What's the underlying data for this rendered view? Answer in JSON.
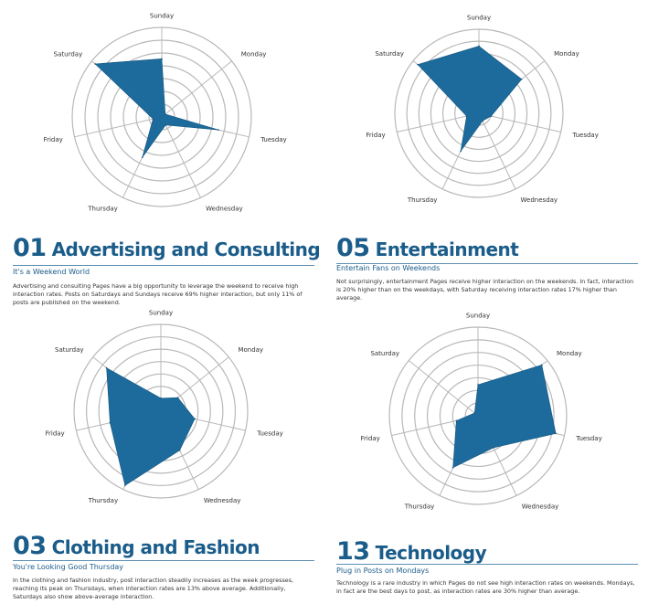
{
  "colors": {
    "accent": "#1a5c8a",
    "area": "#1d6b9c",
    "grid": "#b8b8b8"
  },
  "days": [
    "Monday",
    "Tuesday",
    "Wednesday",
    "Thursday",
    "Friday",
    "Saturday",
    "Sunday"
  ],
  "panels": [
    {
      "number": "01",
      "title": "Advertising and Consulting",
      "subtitle": "It's a Weekend World",
      "body": "Advertising and consulting Pages have a big opportunity to leverage the weekend to receive high interaction rates. Posts on Saturdays and Sundays receive 69% higher interaction, but only 11% of posts are published on the weekend."
    },
    {
      "number": "05",
      "title": "Entertainment",
      "subtitle": "Entertain Fans on Weekends",
      "body": "Not surprisingly, entertainment Pages receive higher interaction on the weekends. In fact, interaction is 20% higher than on the weekdays, with Saturday receiving interaction rates 17% higher than average."
    },
    {
      "number": "03",
      "title": "Clothing and Fashion",
      "subtitle": "You're Looking Good Thursday",
      "body": "In the clothing and fashion industry, post interaction steadily increases as the week progresses, reaching its peak on Thursdays, when interaction rates are 13% above average. Additionally, Saturdays also show above-average interaction."
    },
    {
      "number": "13",
      "title": "Technology",
      "subtitle": "Plug in Posts on Mondays",
      "body": "Technology is a rare industry in which Pages do not see high interaction rates on weekends. Mondays, in fact are the best days to post, as interaction rates are 30% higher than average."
    }
  ],
  "chart_data": [
    {
      "type": "radar",
      "categories": [
        "Monday",
        "Tuesday",
        "Wednesday",
        "Thursday",
        "Friday",
        "Saturday",
        "Sunday"
      ],
      "rings": 7,
      "values": [
        0.5,
        6.5,
        1.0,
        5.0,
        1.0,
        9.5,
        6.5
      ]
    },
    {
      "type": "radar",
      "categories": [
        "Monday",
        "Tuesday",
        "Wednesday",
        "Thursday",
        "Friday",
        "Saturday",
        "Sunday"
      ],
      "rings": 7,
      "values": [
        6.5,
        1.5,
        1.0,
        5.0,
        1.5,
        9.3,
        8.0
      ]
    },
    {
      "type": "radar",
      "categories": [
        "Monday",
        "Tuesday",
        "Wednesday",
        "Thursday",
        "Friday",
        "Saturday",
        "Sunday"
      ],
      "rings": 7,
      "values": [
        2.5,
        4.0,
        5.0,
        9.5,
        6.0,
        8.0,
        1.5
      ]
    },
    {
      "type": "radar",
      "categories": [
        "Monday",
        "Tuesday",
        "Wednesday",
        "Thursday",
        "Friday",
        "Saturday",
        "Sunday"
      ],
      "rings": 7,
      "values": [
        9.2,
        9.0,
        4.0,
        6.5,
        2.5,
        0.5,
        3.5
      ]
    }
  ]
}
